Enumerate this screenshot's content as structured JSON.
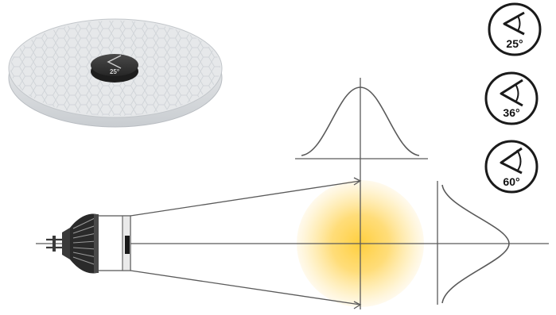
{
  "lens": {
    "badge_label": "25°"
  },
  "angle_badges": [
    {
      "name": "angle-badge-25",
      "label": "25°"
    },
    {
      "name": "angle-badge-36",
      "label": "36°"
    },
    {
      "name": "angle-badge-60",
      "label": "60°"
    }
  ],
  "colors": {
    "line": "#5a5a5a",
    "badge_stroke": "#1a1a1a",
    "glow_center": "#ffd24a",
    "glow_edge": "#fff3d6",
    "lens_fill": "#e8eaec",
    "bulb": "#3a3a3a",
    "bulb_fins": "#1f1f1f"
  }
}
